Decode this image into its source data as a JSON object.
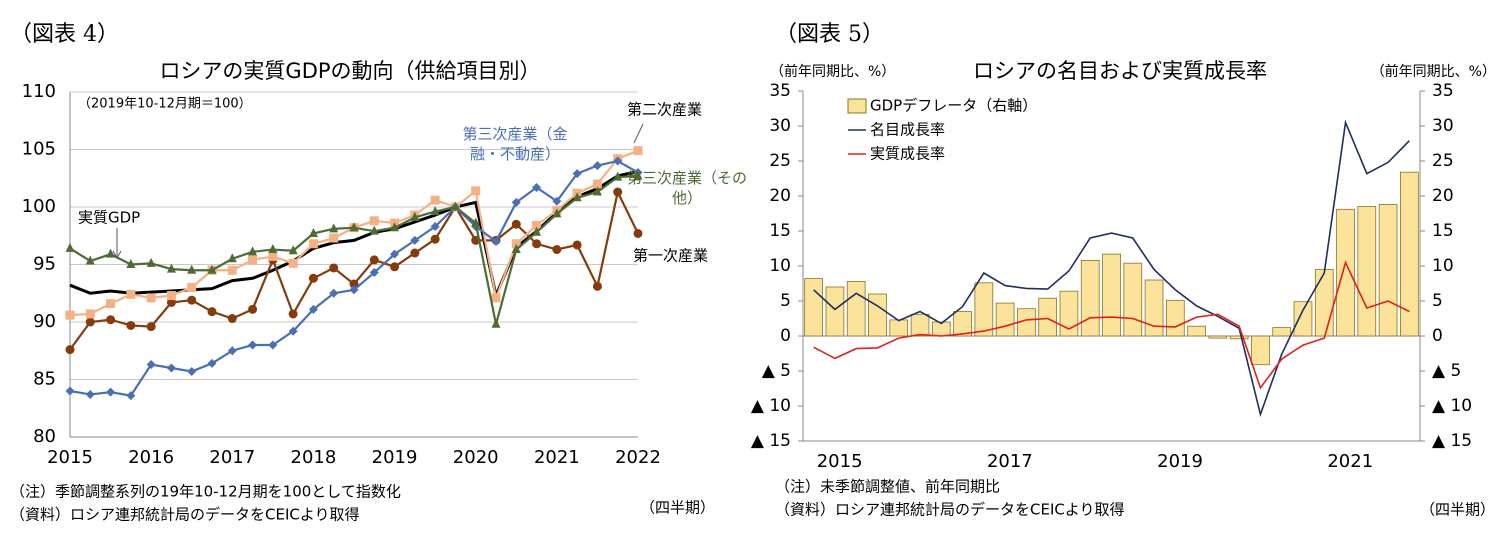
{
  "chart_data": [
    {
      "type": "line",
      "label": "（図表 4）",
      "title": "ロシアの実質GDPの動向（供給項目別）",
      "subtitle": "（2019年10-12月期＝100）",
      "categories": [
        "2015",
        null,
        null,
        null,
        "2016",
        null,
        null,
        null,
        "2017",
        null,
        null,
        null,
        "2018",
        null,
        null,
        null,
        "2019",
        null,
        null,
        null,
        "2020",
        null,
        null,
        null,
        "2021",
        null,
        null,
        null,
        "2022"
      ],
      "ylim": [
        80,
        110
      ],
      "yticks": [
        80,
        85,
        90,
        95,
        100,
        105,
        110
      ],
      "grid": true,
      "series": [
        {
          "name": "実質GDP",
          "color": "#000000",
          "marker": "none",
          "values": [
            93.2,
            92.5,
            92.7,
            92.5,
            92.6,
            92.7,
            92.8,
            92.9,
            93.6,
            93.8,
            94.5,
            95.3,
            96.4,
            96.9,
            97.1,
            97.8,
            98.1,
            98.7,
            99.3,
            100.0,
            100.4,
            92.3,
            96.5,
            97.9,
            99.5,
            100.9,
            101.6,
            102.7,
            103.1
          ]
        },
        {
          "name": "第一次産業",
          "color": "#843c0c",
          "marker": "circle",
          "values": [
            87.6,
            90.0,
            90.2,
            89.7,
            89.6,
            91.7,
            91.9,
            90.9,
            90.3,
            91.1,
            95.4,
            90.7,
            93.8,
            94.7,
            93.3,
            95.4,
            94.8,
            96.0,
            97.2,
            100.0,
            97.1,
            97.1,
            98.5,
            96.8,
            96.3,
            96.7,
            93.1,
            101.3,
            97.7
          ]
        },
        {
          "name": "第二次産業",
          "color": "#f4b183",
          "marker": "square",
          "values": [
            90.6,
            90.7,
            91.6,
            92.4,
            92.1,
            92.3,
            93.0,
            94.5,
            94.5,
            95.4,
            95.7,
            95.1,
            96.8,
            97.3,
            98.2,
            98.8,
            98.6,
            99.3,
            100.6,
            100.0,
            101.4,
            92.1,
            96.8,
            98.4,
            99.7,
            101.2,
            102.0,
            104.2,
            104.9
          ]
        },
        {
          "name": "第三次産業（金融・不動産）",
          "color": "#4a6fb5",
          "marker": "diamond",
          "values": [
            84.0,
            83.7,
            83.9,
            83.6,
            86.3,
            86.0,
            85.7,
            86.4,
            87.5,
            88.0,
            88.0,
            89.2,
            91.1,
            92.5,
            92.8,
            94.3,
            95.9,
            97.1,
            98.3,
            100.0,
            98.3,
            97.0,
            100.4,
            101.7,
            100.5,
            102.9,
            103.6,
            104.0,
            103.0
          ]
        },
        {
          "name": "第三次産業（その他）",
          "color": "#4e6b36",
          "marker": "triangle",
          "values": [
            96.4,
            95.3,
            95.9,
            95.0,
            95.1,
            94.6,
            94.5,
            94.5,
            95.5,
            96.1,
            96.3,
            96.2,
            97.7,
            98.1,
            98.2,
            97.9,
            98.2,
            99.1,
            99.6,
            100.0,
            98.6,
            89.8,
            96.3,
            97.8,
            99.4,
            100.8,
            101.3,
            102.6,
            102.7
          ]
        }
      ],
      "notes": [
        "（注）季節調整系列の19年10-12月期を100として指数化",
        "（資料）ロシア連邦統計局のデータをCEICより取得"
      ],
      "x_unit": "（四半期）"
    },
    {
      "type": "combo",
      "label": "（図表 5）",
      "title": "ロシアの名目および実質成長率",
      "ylabel": "（前年同期比、%）",
      "y2label": "（前年同期比、%）",
      "categories": [
        "2015",
        null,
        null,
        null,
        null,
        null,
        null,
        null,
        "2017",
        null,
        null,
        null,
        null,
        null,
        null,
        null,
        "2019",
        null,
        null,
        null,
        null,
        null,
        null,
        null,
        "2021",
        null,
        null,
        null,
        null
      ],
      "ylim": [
        -15,
        35
      ],
      "yticks": [
        {
          "value": -15,
          "label": "▲ 15"
        },
        {
          "value": -10,
          "label": "▲ 10"
        },
        {
          "value": -5,
          "label": "▲ 5"
        },
        0,
        5,
        10,
        15,
        20,
        25,
        30,
        35
      ],
      "y2lim": [
        -15,
        35
      ],
      "y2ticks": [
        {
          "value": -15,
          "label": "▲ 15"
        },
        {
          "value": -10,
          "label": "▲ 10"
        },
        {
          "value": -5,
          "label": "▲ 5"
        },
        0,
        5,
        10,
        15,
        20,
        25,
        30,
        35
      ],
      "legend": "upper left",
      "series": [
        {
          "name": "GDPデフレータ（右軸）",
          "type": "bar",
          "axis": "y2",
          "color": "#fbe39b",
          "values": [
            8.2,
            7.0,
            7.8,
            6.0,
            2.3,
            3.1,
            2.0,
            3.5,
            7.6,
            4.7,
            3.9,
            5.4,
            6.4,
            10.8,
            11.7,
            10.4,
            8.0,
            5.1,
            1.4,
            -0.3,
            -0.4,
            -4.1,
            1.2,
            4.9,
            9.5,
            18.1,
            18.5,
            18.8,
            23.4
          ]
        },
        {
          "name": "名目成長率",
          "type": "line",
          "color": "#1f2f5f",
          "values": [
            6.6,
            3.8,
            6.1,
            4.3,
            2.2,
            3.5,
            1.8,
            4.2,
            9.0,
            7.2,
            6.8,
            6.7,
            9.3,
            14.0,
            14.7,
            14.0,
            9.5,
            6.6,
            4.3,
            2.8,
            1.1,
            -11.2,
            -2.6,
            3.7,
            9.0,
            30.5,
            23.2,
            24.8,
            27.9
          ]
        },
        {
          "name": "実質成長率",
          "type": "line",
          "color": "#e0201b",
          "values": [
            -1.6,
            -3.2,
            -1.8,
            -1.7,
            -0.3,
            0.2,
            0.0,
            0.3,
            0.7,
            1.4,
            2.3,
            2.5,
            1.0,
            2.6,
            2.7,
            2.5,
            1.4,
            1.3,
            2.7,
            3.1,
            1.4,
            -7.4,
            -3.3,
            -1.3,
            -0.3,
            10.5,
            4.0,
            5.0,
            3.5
          ]
        }
      ],
      "notes": [
        "（注）未季節調整値、前年同期比",
        "（資料）ロシア連邦統計局のデータをCEICより取得"
      ],
      "x_unit": "（四半期）"
    }
  ]
}
